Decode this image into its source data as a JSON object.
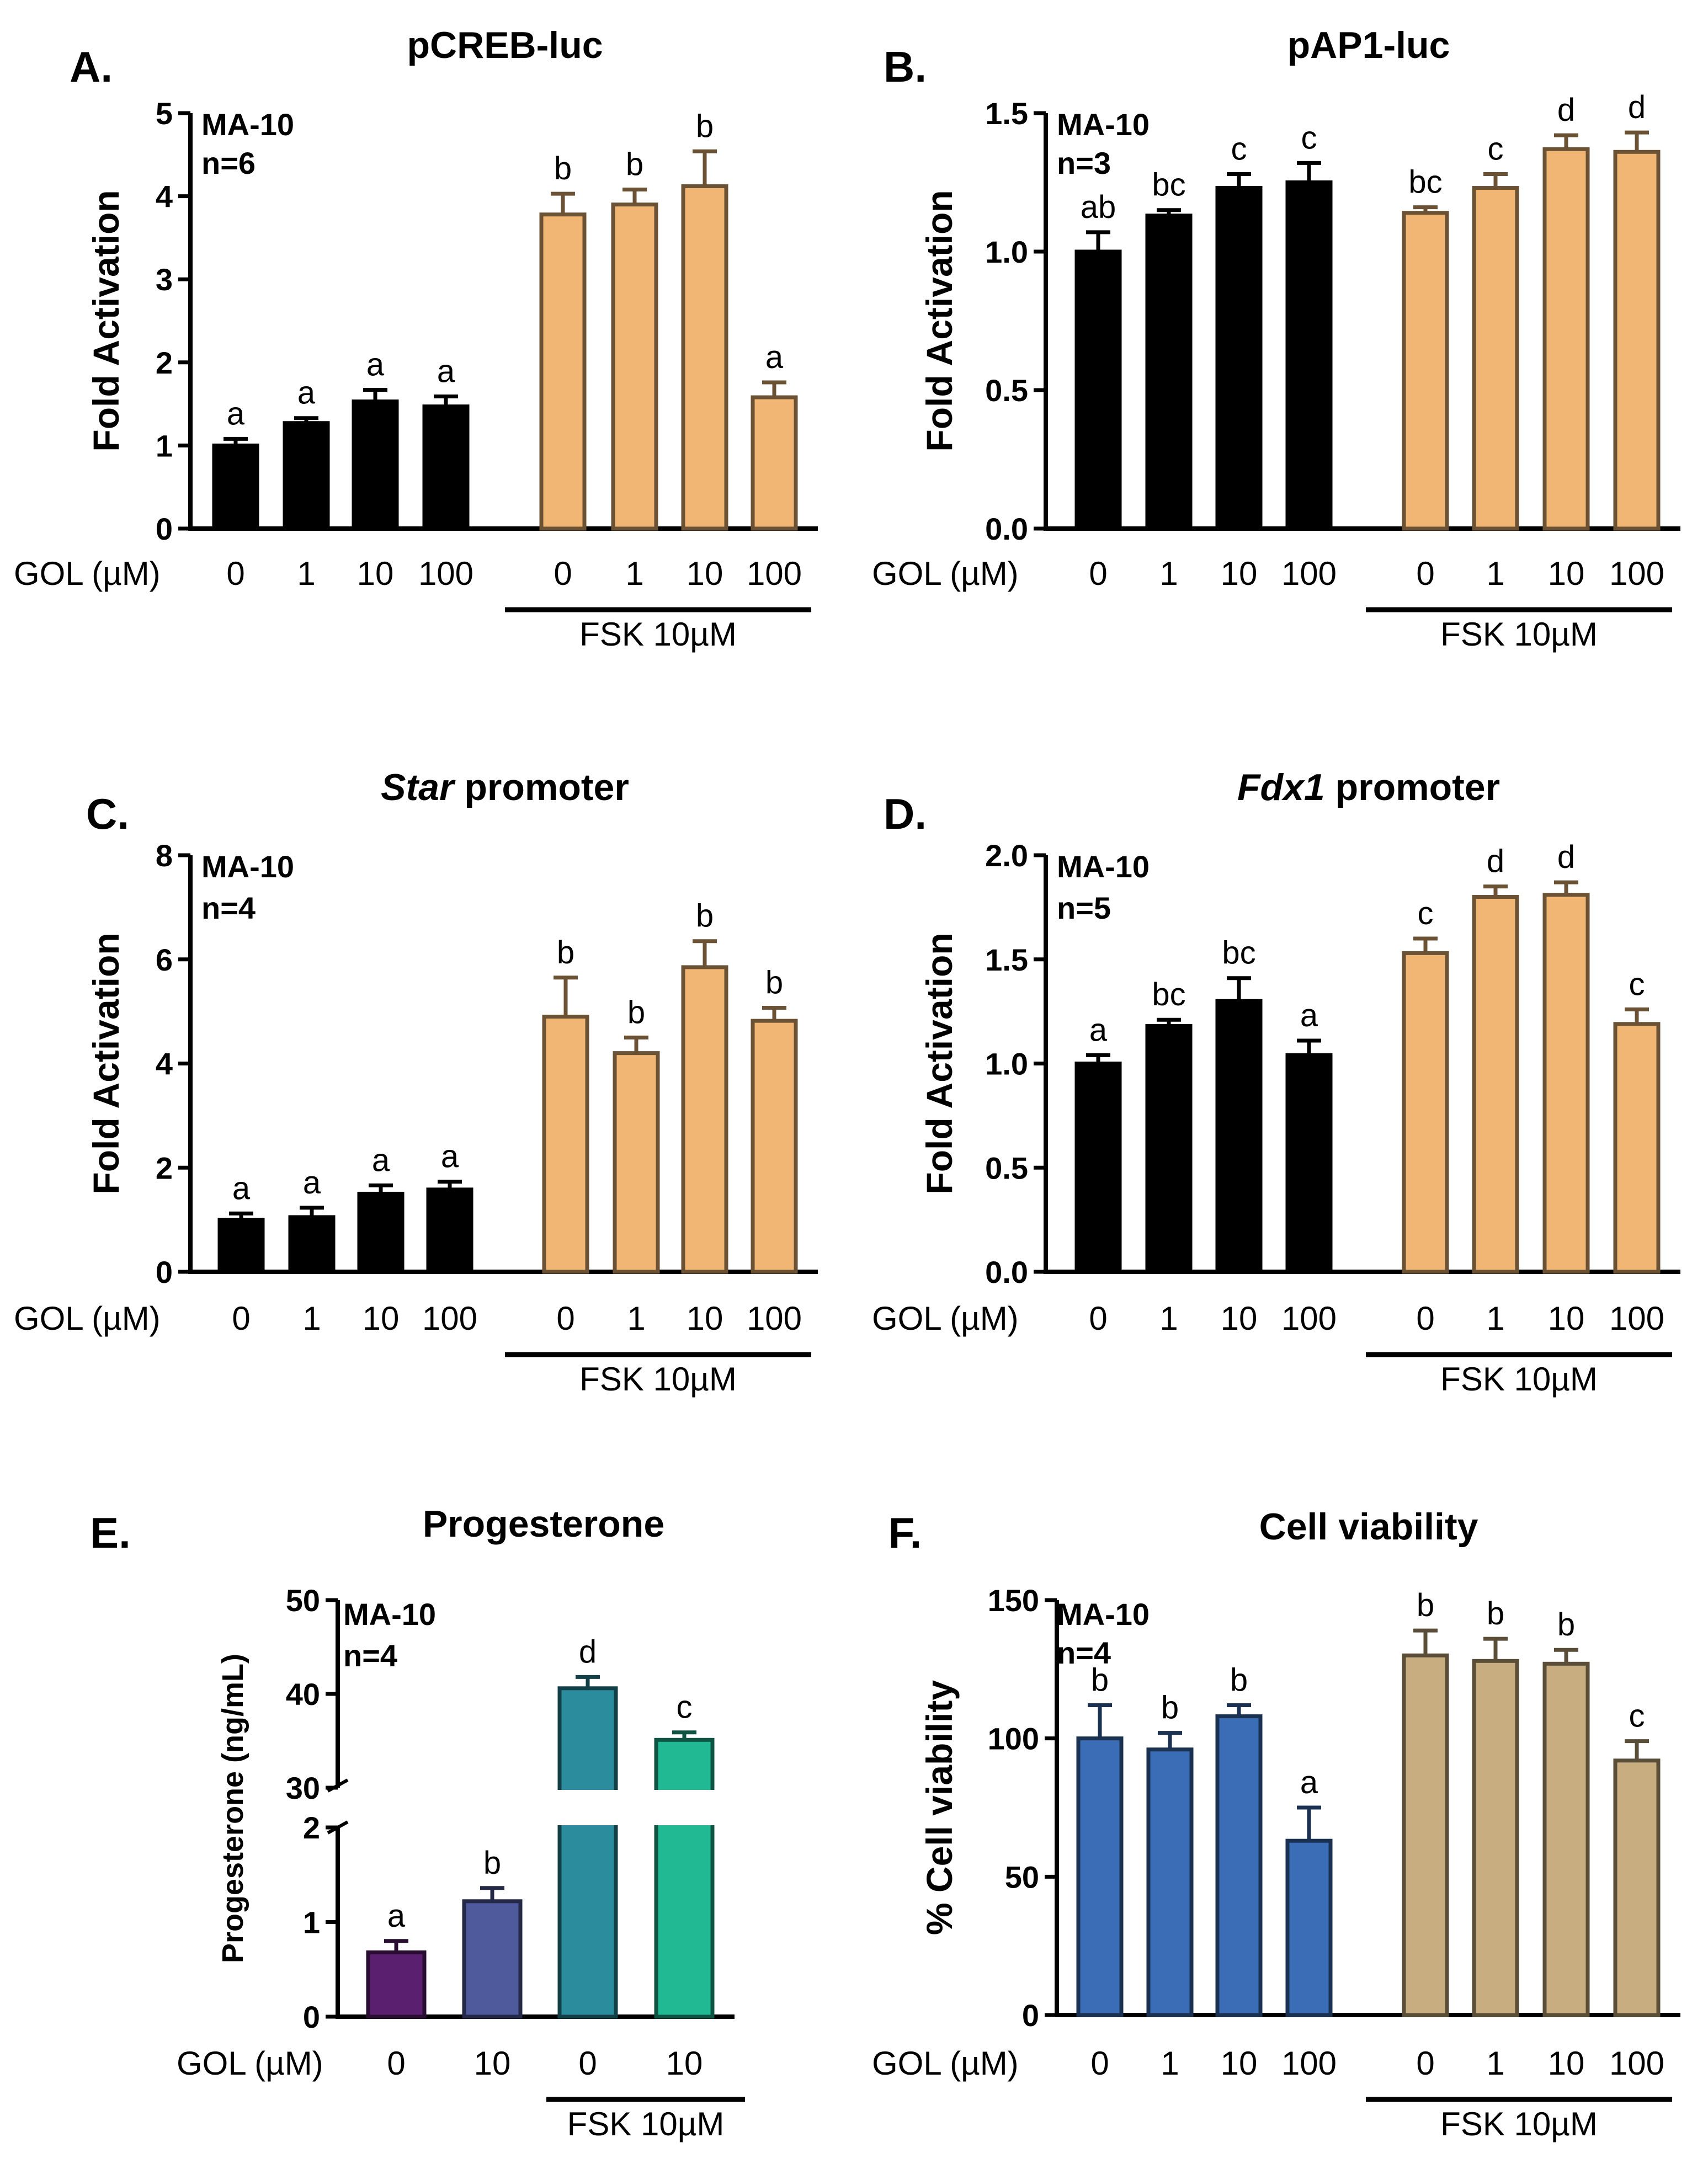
{
  "chart_data": [
    {
      "panel": "A.",
      "type": "bar",
      "title": "pCREB-luc",
      "ylabel": "Fold Activation",
      "ylim": [
        0,
        5
      ],
      "yticks": [
        "0",
        "1",
        "2",
        "3",
        "4",
        "5"
      ],
      "cell_line": "MA-10",
      "n_label": "n=6",
      "xlabel": "GOL (µM)",
      "group_label": "FSK 10µM",
      "categories": [
        "0",
        "1",
        "10",
        "100",
        "0",
        "1",
        "10",
        "100"
      ],
      "values": [
        1.0,
        1.27,
        1.53,
        1.47,
        3.78,
        3.9,
        4.12,
        1.58
      ],
      "errors": [
        0.08,
        0.06,
        0.14,
        0.12,
        0.25,
        0.18,
        0.42,
        0.18
      ],
      "letters": [
        "a",
        "a",
        "a",
        "a",
        "b",
        "b",
        "b",
        "a"
      ],
      "colors": [
        "#000000",
        "#000000",
        "#000000",
        "#000000",
        "#f1b674",
        "#f1b674",
        "#f1b674",
        "#f1b674"
      ]
    },
    {
      "panel": "B.",
      "type": "bar",
      "title": "pAP1-luc",
      "ylabel": "Fold Activation",
      "ylim": [
        0,
        1.5
      ],
      "yticks": [
        "0.0",
        "0.5",
        "1.0",
        "1.5"
      ],
      "cell_line": "MA-10",
      "n_label": "n=3",
      "xlabel": "GOL (µM)",
      "group_label": "FSK 10µM",
      "categories": [
        "0",
        "1",
        "10",
        "100",
        "0",
        "1",
        "10",
        "100"
      ],
      "values": [
        1.0,
        1.13,
        1.23,
        1.25,
        1.14,
        1.23,
        1.37,
        1.36
      ],
      "errors": [
        0.07,
        0.02,
        0.05,
        0.07,
        0.02,
        0.05,
        0.05,
        0.07
      ],
      "letters": [
        "ab",
        "bc",
        "c",
        "c",
        "bc",
        "c",
        "d",
        "d"
      ],
      "colors": [
        "#000000",
        "#000000",
        "#000000",
        "#000000",
        "#f1b674",
        "#f1b674",
        "#f1b674",
        "#f1b674"
      ]
    },
    {
      "panel": "C.",
      "type": "bar",
      "title_italic": "Star",
      "title_rest": " promoter",
      "ylabel": "Fold Activation",
      "ylim": [
        0,
        8
      ],
      "yticks": [
        "0",
        "2",
        "4",
        "6",
        "8"
      ],
      "cell_line": "MA-10",
      "n_label": "n=4",
      "xlabel": "GOL (µM)",
      "group_label": "FSK 10µM",
      "categories": [
        "0",
        "1",
        "10",
        "100",
        "0",
        "1",
        "10",
        "100"
      ],
      "values": [
        1.0,
        1.05,
        1.5,
        1.58,
        4.9,
        4.2,
        5.85,
        4.82
      ],
      "errors": [
        0.12,
        0.18,
        0.16,
        0.15,
        0.75,
        0.3,
        0.5,
        0.25
      ],
      "letters": [
        "a",
        "a",
        "a",
        "a",
        "b",
        "b",
        "b",
        "b"
      ],
      "colors": [
        "#000000",
        "#000000",
        "#000000",
        "#000000",
        "#f1b674",
        "#f1b674",
        "#f1b674",
        "#f1b674"
      ]
    },
    {
      "panel": "D.",
      "type": "bar",
      "title_italic": "Fdx1",
      "title_rest": " promoter",
      "ylabel": "Fold Activation",
      "ylim": [
        0,
        2.0
      ],
      "yticks": [
        "0.0",
        "0.5",
        "1.0",
        "1.5",
        "2.0"
      ],
      "cell_line": "MA-10",
      "n_label": "n=5",
      "xlabel": "GOL (µM)",
      "group_label": "FSK 10µM",
      "categories": [
        "0",
        "1",
        "10",
        "100",
        "0",
        "1",
        "10",
        "100"
      ],
      "values": [
        1.0,
        1.18,
        1.3,
        1.04,
        1.53,
        1.8,
        1.81,
        1.19
      ],
      "errors": [
        0.04,
        0.03,
        0.11,
        0.07,
        0.07,
        0.05,
        0.06,
        0.07
      ],
      "letters": [
        "a",
        "bc",
        "bc",
        "a",
        "c",
        "d",
        "d",
        "c"
      ],
      "colors": [
        "#000000",
        "#000000",
        "#000000",
        "#000000",
        "#f1b674",
        "#f1b674",
        "#f1b674",
        "#f1b674"
      ]
    },
    {
      "panel": "E.",
      "type": "bar",
      "title": "Progesterone",
      "ylabel": "Progesterone (ng/mL)",
      "axis_break": true,
      "lower_range": [
        0,
        2
      ],
      "upper_range": [
        30,
        50
      ],
      "lower_ticks": [
        "0",
        "1",
        "2"
      ],
      "upper_ticks": [
        "30",
        "40",
        "50"
      ],
      "cell_line": "MA-10",
      "n_label": "n=4",
      "xlabel": "GOL (µM)",
      "group_label": "FSK 10µM",
      "categories": [
        "0",
        "10",
        "0",
        "10"
      ],
      "values": [
        0.68,
        1.22,
        40.6,
        35.1
      ],
      "errors": [
        0.12,
        0.14,
        1.2,
        0.8
      ],
      "letters": [
        "a",
        "b",
        "d",
        "c"
      ],
      "colors": [
        "#5a1f6e",
        "#4e5a9c",
        "#2b8c9e",
        "#21b894"
      ]
    },
    {
      "panel": "F.",
      "type": "bar",
      "title": "Cell viability",
      "ylabel": "% Cell viability",
      "ylim": [
        0,
        150
      ],
      "yticks": [
        "0",
        "50",
        "100",
        "150"
      ],
      "cell_line": "MA-10",
      "n_label": "n=4",
      "xlabel": "GOL (µM)",
      "group_label": "FSK 10µM",
      "categories": [
        "0",
        "1",
        "10",
        "100",
        "0",
        "1",
        "10",
        "100"
      ],
      "values": [
        100,
        96,
        108,
        63,
        130,
        128,
        127,
        92
      ],
      "errors": [
        12,
        6,
        4,
        12,
        9,
        8,
        5,
        7
      ],
      "letters": [
        "b",
        "b",
        "b",
        "a",
        "b",
        "b",
        "b",
        "c"
      ],
      "colors": [
        "#3a6db5",
        "#3a6db5",
        "#3a6db5",
        "#3a6db5",
        "#c7ad7f",
        "#c7ad7f",
        "#c7ad7f",
        "#c7ad7f"
      ]
    }
  ]
}
